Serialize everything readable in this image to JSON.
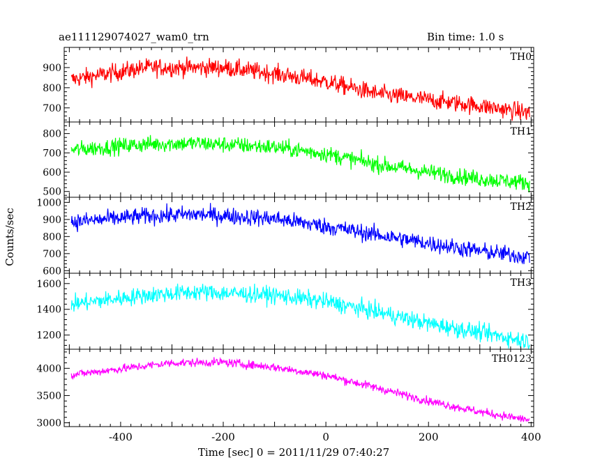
{
  "header": {
    "title": "ae111129074027_wam0_trn",
    "bin_time": "Bin time: 1.0 s"
  },
  "chart_data": {
    "type": "line",
    "xlabel": "Time [sec] 0 = 2011/11/29 07:40:27",
    "ylabel": "Counts/sec",
    "xlim": [
      -510,
      405
    ],
    "x_ticks": [
      -400,
      -200,
      0,
      200,
      400
    ],
    "x_range": [
      -496,
      397
    ],
    "panels": [
      {
        "name": "TH0",
        "color": "#ff0000",
        "ylim": [
          630,
          1000
        ],
        "y_ticks": [
          700,
          800,
          900
        ],
        "trend": [
          [
            -496,
            840
          ],
          [
            -350,
            900
          ],
          [
            -200,
            900
          ],
          [
            -100,
            870
          ],
          [
            0,
            830
          ],
          [
            100,
            770
          ],
          [
            200,
            740
          ],
          [
            300,
            710
          ],
          [
            397,
            675
          ]
        ],
        "noise": 40
      },
      {
        "name": "TH1",
        "color": "#00ff00",
        "ylim": [
          470,
          860
        ],
        "y_ticks": [
          500,
          600,
          700,
          800
        ],
        "trend": [
          [
            -496,
            715
          ],
          [
            -350,
            745
          ],
          [
            -250,
            750
          ],
          [
            -100,
            730
          ],
          [
            0,
            695
          ],
          [
            100,
            640
          ],
          [
            200,
            600
          ],
          [
            300,
            565
          ],
          [
            397,
            545
          ]
        ],
        "noise": 38
      },
      {
        "name": "TH2",
        "color": "#0000ff",
        "ylim": [
          585,
          1030
        ],
        "y_ticks": [
          600,
          700,
          800,
          900,
          1000
        ],
        "trend": [
          [
            -496,
            885
          ],
          [
            -350,
            920
          ],
          [
            -250,
            930
          ],
          [
            -100,
            905
          ],
          [
            0,
            860
          ],
          [
            100,
            810
          ],
          [
            200,
            760
          ],
          [
            300,
            715
          ],
          [
            397,
            680
          ]
        ],
        "noise": 45
      },
      {
        "name": "TH3",
        "color": "#00ffff",
        "ylim": [
          1090,
          1680
        ],
        "y_ticks": [
          1200,
          1400,
          1600
        ],
        "trend": [
          [
            -496,
            1440
          ],
          [
            -350,
            1510
          ],
          [
            -250,
            1535
          ],
          [
            -100,
            1510
          ],
          [
            0,
            1460
          ],
          [
            100,
            1380
          ],
          [
            200,
            1290
          ],
          [
            300,
            1220
          ],
          [
            397,
            1150
          ]
        ],
        "noise": 60
      },
      {
        "name": "TH0123",
        "color": "#ff00ff",
        "ylim": [
          2930,
          4350
        ],
        "y_ticks": [
          3000,
          3500,
          4000
        ],
        "trend": [
          [
            -496,
            3880
          ],
          [
            -400,
            3990
          ],
          [
            -300,
            4100
          ],
          [
            -200,
            4110
          ],
          [
            -100,
            4020
          ],
          [
            0,
            3870
          ],
          [
            100,
            3640
          ],
          [
            200,
            3400
          ],
          [
            300,
            3200
          ],
          [
            397,
            3050
          ]
        ],
        "noise": 70
      }
    ]
  }
}
